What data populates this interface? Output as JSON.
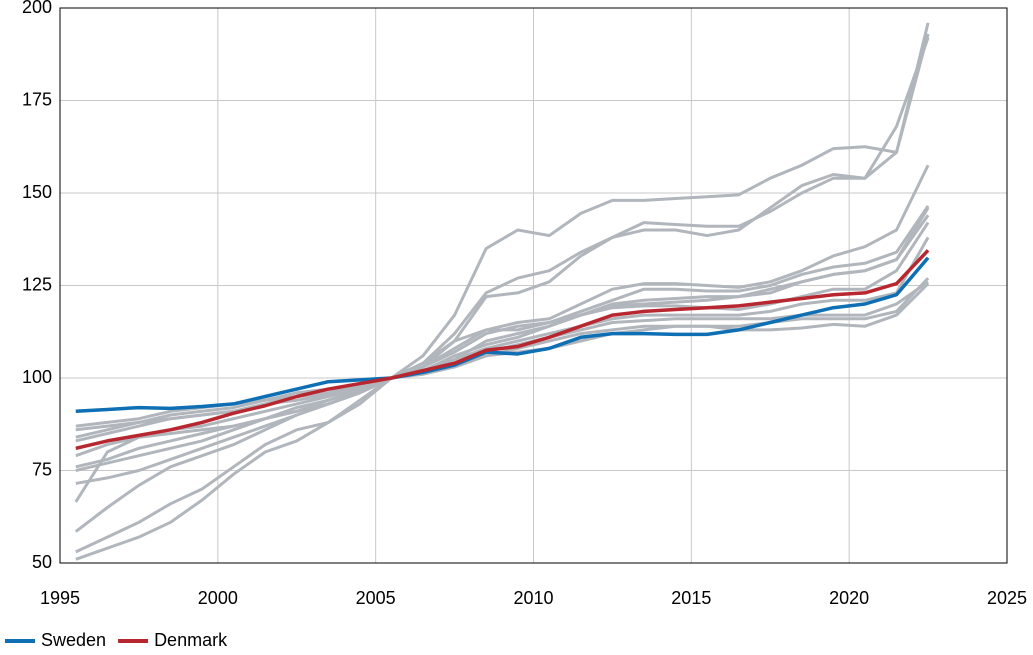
{
  "chart_data": {
    "type": "line",
    "x": [
      1995.5,
      1996.5,
      1997.5,
      1998.5,
      1999.5,
      2000.5,
      2001.5,
      2002.5,
      2003.5,
      2004.5,
      2005.5,
      2006.5,
      2007.5,
      2008.5,
      2009.5,
      2010.5,
      2011.5,
      2012.5,
      2013.5,
      2014.5,
      2015.5,
      2016.5,
      2017.5,
      2018.5,
      2019.5,
      2020.5,
      2021.5,
      2022.5
    ],
    "xlim": [
      1995,
      2025
    ],
    "xticks": [
      1995,
      2000,
      2005,
      2010,
      2015,
      2020,
      2025
    ],
    "ylim": [
      50,
      200
    ],
    "yticks": [
      50,
      75,
      100,
      125,
      150,
      175,
      200
    ],
    "grid": true,
    "legend": "bottom-left",
    "series": [
      {
        "color": "#b1b6bd",
        "values": [
          84,
          86,
          88,
          90,
          91,
          92,
          94,
          96,
          97,
          98.5,
          100,
          103,
          110,
          122,
          123,
          126,
          133,
          138,
          142,
          141.5,
          141,
          141,
          145,
          150,
          154,
          154,
          161,
          196
        ]
      },
      {
        "color": "#b1b6bd",
        "values": [
          83,
          85,
          87,
          89,
          90,
          91,
          93,
          95,
          96,
          98,
          100,
          104,
          112,
          123,
          127,
          129,
          134,
          138,
          140,
          140,
          138.5,
          140,
          146,
          152,
          155,
          154,
          168,
          192
        ]
      },
      {
        "color": "#b1b6bd",
        "values": [
          79,
          82,
          84,
          86,
          87,
          89,
          91,
          93,
          95,
          97.5,
          100,
          106,
          117,
          135,
          140,
          138.5,
          144.5,
          148,
          148,
          148.5,
          149,
          149.5,
          154,
          157.5,
          162,
          162.5,
          161,
          193
        ]
      },
      {
        "color": "#b1b6bd",
        "values": [
          75,
          77,
          79,
          81,
          83,
          86,
          89,
          92,
          94,
          97,
          100,
          103,
          108,
          113,
          115,
          116,
          120,
          124,
          125.5,
          125.5,
          125,
          124.5,
          126,
          129,
          133,
          135.5,
          140,
          157.5
        ]
      },
      {
        "color": "#b1b6bd",
        "values": [
          53,
          57,
          61,
          66,
          70,
          76,
          82,
          86,
          88,
          93,
          100,
          104,
          110,
          113,
          113,
          115,
          118,
          121,
          124,
          124,
          123.5,
          123.5,
          125,
          128,
          130,
          131,
          134,
          146.5
        ]
      },
      {
        "color": "#b1b6bd",
        "values": [
          51,
          54,
          57,
          61,
          67,
          74,
          80,
          83,
          88,
          94,
          100,
          103,
          107,
          112,
          114,
          115,
          117,
          119,
          119.5,
          119.5,
          119,
          118.5,
          120,
          122,
          124,
          124,
          129,
          142
        ]
      },
      {
        "color": "#b1b6bd",
        "values": [
          58.5,
          65,
          71,
          76,
          79,
          82,
          86,
          90,
          93,
          96,
          100,
          102,
          105,
          108,
          110,
          112,
          114,
          116,
          117,
          117,
          117,
          117,
          118,
          120,
          121,
          121,
          123,
          138
        ]
      },
      {
        "color": "#b1b6bd",
        "values": [
          66.5,
          80,
          84,
          85,
          86,
          87,
          89,
          91,
          94,
          96.5,
          100,
          102,
          106,
          109,
          111,
          114,
          117,
          120,
          121,
          121.5,
          122,
          122,
          123,
          126,
          128,
          129,
          132,
          144
        ]
      },
      {
        "color": "#b1b6bd",
        "values": [
          87,
          88,
          89,
          91,
          92,
          93,
          94,
          95,
          96,
          98,
          100,
          101.5,
          103,
          106,
          107,
          108,
          110,
          112,
          113,
          114,
          114,
          114,
          115,
          116,
          116,
          116,
          118,
          127
        ]
      },
      {
        "color": "#b1b6bd",
        "values": [
          71.5,
          73,
          75,
          78,
          81,
          84,
          87,
          90,
          93,
          96,
          100,
          102,
          104,
          107,
          109,
          111,
          113,
          115,
          115.5,
          116,
          116,
          116,
          116,
          117,
          117,
          117,
          120,
          126
        ]
      },
      {
        "color": "#b1b6bd",
        "values": [
          76,
          78,
          81,
          83,
          85,
          87,
          89,
          91,
          93,
          96,
          100,
          101,
          103,
          106,
          108,
          110,
          112,
          113,
          114,
          114,
          114,
          113,
          113,
          113.5,
          114.5,
          114,
          117,
          125.5
        ]
      },
      {
        "color": "#b1b6bd",
        "values": [
          86,
          87,
          88,
          89,
          90,
          91,
          93,
          94,
          95.5,
          97.5,
          100,
          102,
          105,
          110,
          112,
          114,
          117,
          119.5,
          120,
          120.5,
          121,
          122,
          124,
          126,
          128,
          129,
          132,
          146
        ]
      },
      {
        "name": "Sweden",
        "color": "#0e6fb4",
        "values": [
          91,
          91.5,
          92,
          91.8,
          92.3,
          93,
          95,
          97,
          99,
          99.5,
          100,
          101.5,
          103.5,
          107,
          106.5,
          108,
          111,
          112,
          112,
          111.8,
          111.8,
          113,
          115,
          117,
          119,
          120,
          122.5,
          132.5
        ]
      },
      {
        "name": "Denmark",
        "color": "#b8272f",
        "values": [
          81,
          83,
          84.5,
          86,
          88,
          90.5,
          92.5,
          95,
          97,
          98.5,
          100,
          102,
          104,
          107.5,
          108.5,
          111,
          114,
          117,
          118,
          118.5,
          119,
          119.5,
          120.5,
          121.5,
          122.5,
          123,
          125.5,
          134.5
        ]
      }
    ]
  }
}
